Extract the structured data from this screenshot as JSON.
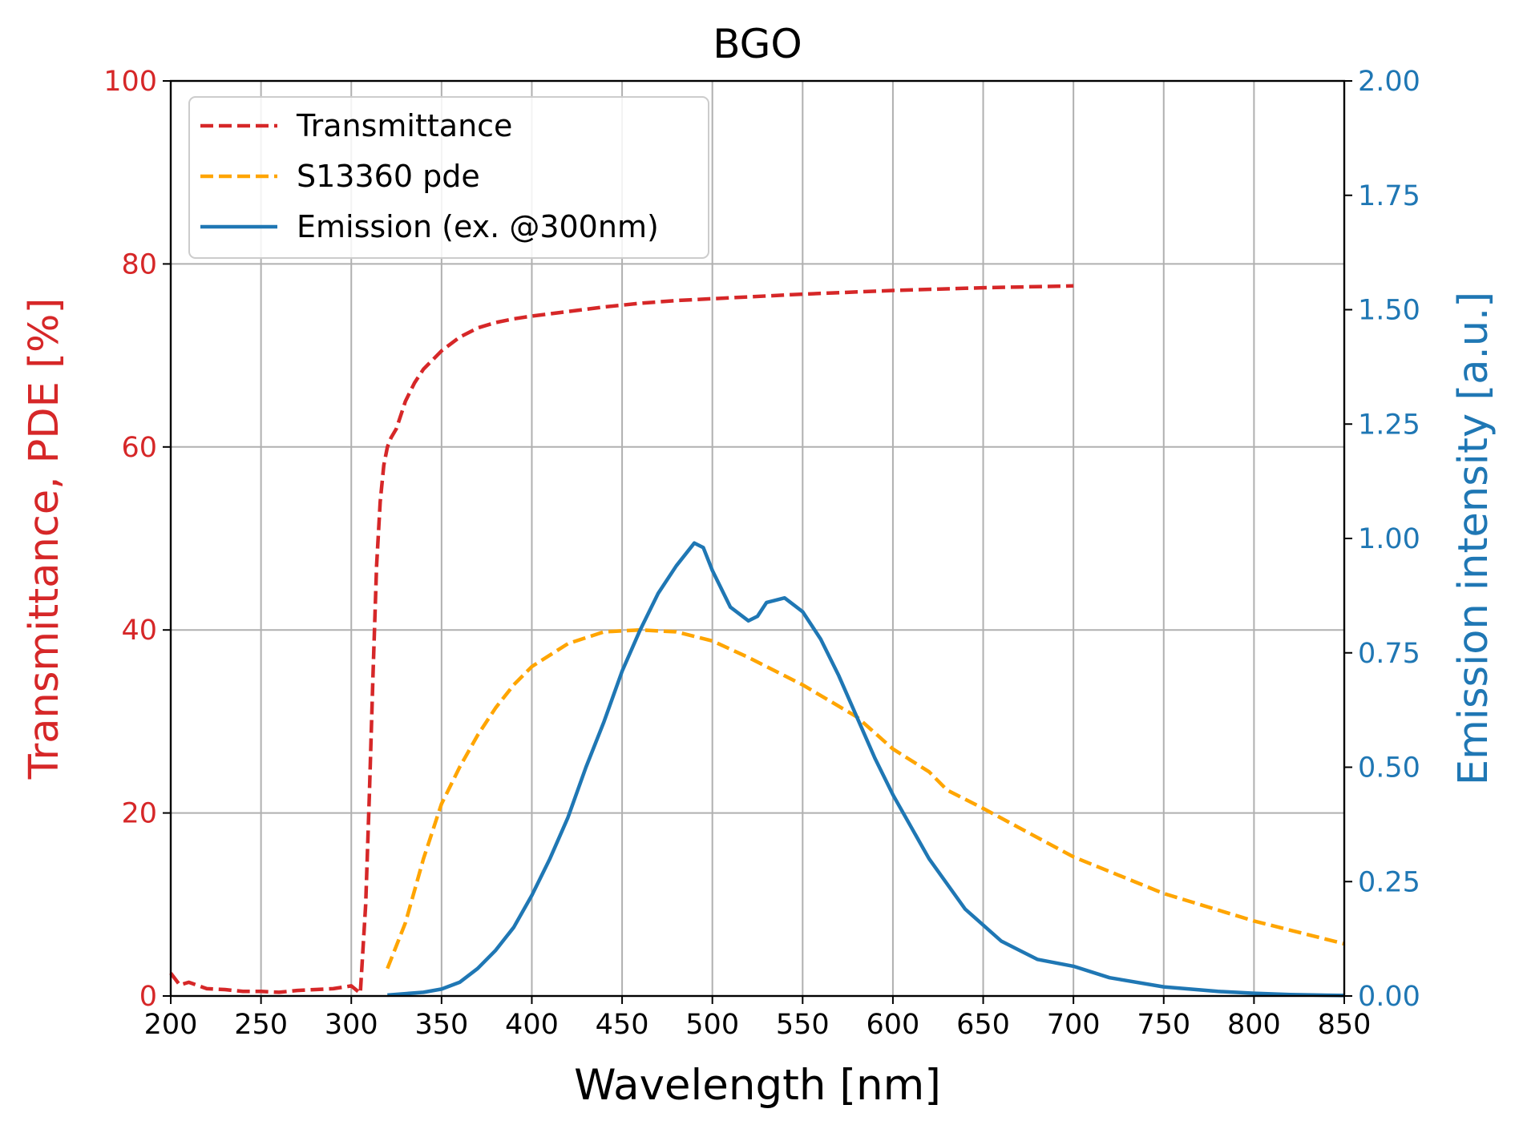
{
  "chart_data": {
    "type": "line",
    "title": "BGO",
    "xlabel": "Wavelength [nm]",
    "ylabel_left": "Transmittance, PDE [%]",
    "ylabel_right": "Emission intensity [a.u.]",
    "xlim": [
      200,
      850
    ],
    "ylim_left": [
      0,
      100
    ],
    "ylim_right": [
      0,
      2.0
    ],
    "x_ticks": [
      "200",
      "250",
      "300",
      "350",
      "400",
      "450",
      "500",
      "550",
      "600",
      "650",
      "700",
      "750",
      "800",
      "850"
    ],
    "y_left_ticks": [
      "0",
      "20",
      "40",
      "60",
      "80",
      "100"
    ],
    "y_right_ticks": [
      "0.00",
      "0.25",
      "0.50",
      "0.75",
      "1.00",
      "1.25",
      "1.50",
      "1.75",
      "2.00"
    ],
    "grid": true,
    "legend_position": "top-left",
    "colors": {
      "transmittance": "#d62728",
      "pde": "#ffa500",
      "emission": "#1f77b4",
      "grid": "#b0b0b0",
      "axis": "#000000"
    },
    "series": [
      {
        "name": "Transmittance",
        "axis": "left",
        "style": "dashed",
        "x": [
          200,
          205,
          210,
          220,
          230,
          240,
          250,
          260,
          270,
          280,
          290,
          300,
          305,
          308,
          310,
          312,
          314,
          316,
          318,
          320,
          322,
          325,
          330,
          335,
          340,
          345,
          350,
          360,
          370,
          380,
          390,
          400,
          420,
          440,
          460,
          480,
          500,
          550,
          600,
          650,
          700
        ],
        "y": [
          2.5,
          1.2,
          1.5,
          0.8,
          0.7,
          0.5,
          0.5,
          0.4,
          0.6,
          0.7,
          0.8,
          1.1,
          0.3,
          10,
          22,
          35,
          47,
          54,
          58,
          60,
          61,
          62,
          65,
          67,
          68.5,
          69.5,
          70.5,
          72,
          73,
          73.6,
          74,
          74.3,
          74.8,
          75.3,
          75.7,
          76,
          76.2,
          76.7,
          77.1,
          77.4,
          77.6
        ]
      },
      {
        "name": "S13360 pde",
        "axis": "left",
        "style": "dashed",
        "x": [
          320,
          330,
          340,
          350,
          360,
          370,
          380,
          390,
          400,
          420,
          440,
          460,
          480,
          500,
          520,
          550,
          580,
          600,
          620,
          630,
          650,
          700,
          750,
          800,
          850
        ],
        "y": [
          3,
          8,
          15,
          21,
          25,
          28.5,
          31.5,
          34,
          36,
          38.5,
          39.8,
          40,
          39.8,
          38.8,
          37,
          34,
          30.5,
          27,
          24.5,
          22.5,
          20.5,
          15.2,
          11.2,
          8.2,
          5.7
        ]
      },
      {
        "name": "Emission (ex. @300nm)",
        "axis": "right",
        "style": "solid",
        "x": [
          320,
          330,
          340,
          350,
          360,
          370,
          380,
          390,
          400,
          410,
          420,
          430,
          440,
          450,
          460,
          470,
          480,
          490,
          495,
          500,
          510,
          520,
          525,
          530,
          540,
          550,
          560,
          570,
          580,
          590,
          600,
          610,
          620,
          640,
          660,
          680,
          700,
          720,
          750,
          780,
          800,
          820,
          850
        ],
        "y": [
          0.002,
          0.005,
          0.008,
          0.015,
          0.03,
          0.06,
          0.1,
          0.15,
          0.22,
          0.3,
          0.39,
          0.5,
          0.6,
          0.71,
          0.8,
          0.88,
          0.94,
          0.99,
          0.98,
          0.93,
          0.85,
          0.82,
          0.83,
          0.86,
          0.87,
          0.84,
          0.78,
          0.7,
          0.61,
          0.52,
          0.44,
          0.37,
          0.3,
          0.19,
          0.12,
          0.08,
          0.065,
          0.04,
          0.02,
          0.01,
          0.006,
          0.003,
          0.001
        ]
      }
    ]
  }
}
